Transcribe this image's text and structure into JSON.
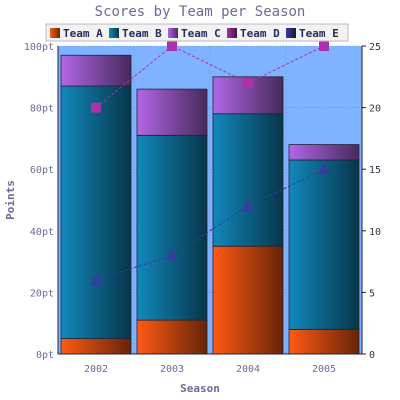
{
  "chart_data": {
    "type": "bar",
    "title": "Scores by Team per Season",
    "xlabel": "Season",
    "ylabel": "Points",
    "categories": [
      "2002",
      "2003",
      "2004",
      "2005"
    ],
    "ylim": [
      0,
      100
    ],
    "yticks": [
      0,
      20,
      40,
      60,
      80,
      100
    ],
    "ytick_suffix": "pt",
    "y2lim": [
      0,
      25
    ],
    "y2ticks": [
      0,
      5,
      10,
      15,
      20,
      25
    ],
    "grid": true,
    "legend_position": "top",
    "bar_series": [
      {
        "name": "Team A",
        "values": [
          5,
          11,
          35,
          8
        ],
        "color": "#ff5a14"
      },
      {
        "name": "Team B",
        "values": [
          82,
          60,
          43,
          55
        ],
        "color": "#1188bb"
      },
      {
        "name": "Team C",
        "values": [
          10,
          15,
          12,
          5
        ],
        "color": "#b266e6"
      }
    ],
    "line_series": [
      {
        "name": "Team D",
        "values": [
          20,
          25,
          22,
          25
        ],
        "color": "#aa33aa",
        "marker": "square",
        "axis": "right"
      },
      {
        "name": "Team E",
        "values": [
          6,
          8,
          12,
          15
        ],
        "color": "#3a3aa0",
        "marker": "triangle",
        "axis": "right"
      }
    ],
    "colors": {
      "plot_background": "#80b3ff",
      "text": "#6a6a9a"
    }
  }
}
